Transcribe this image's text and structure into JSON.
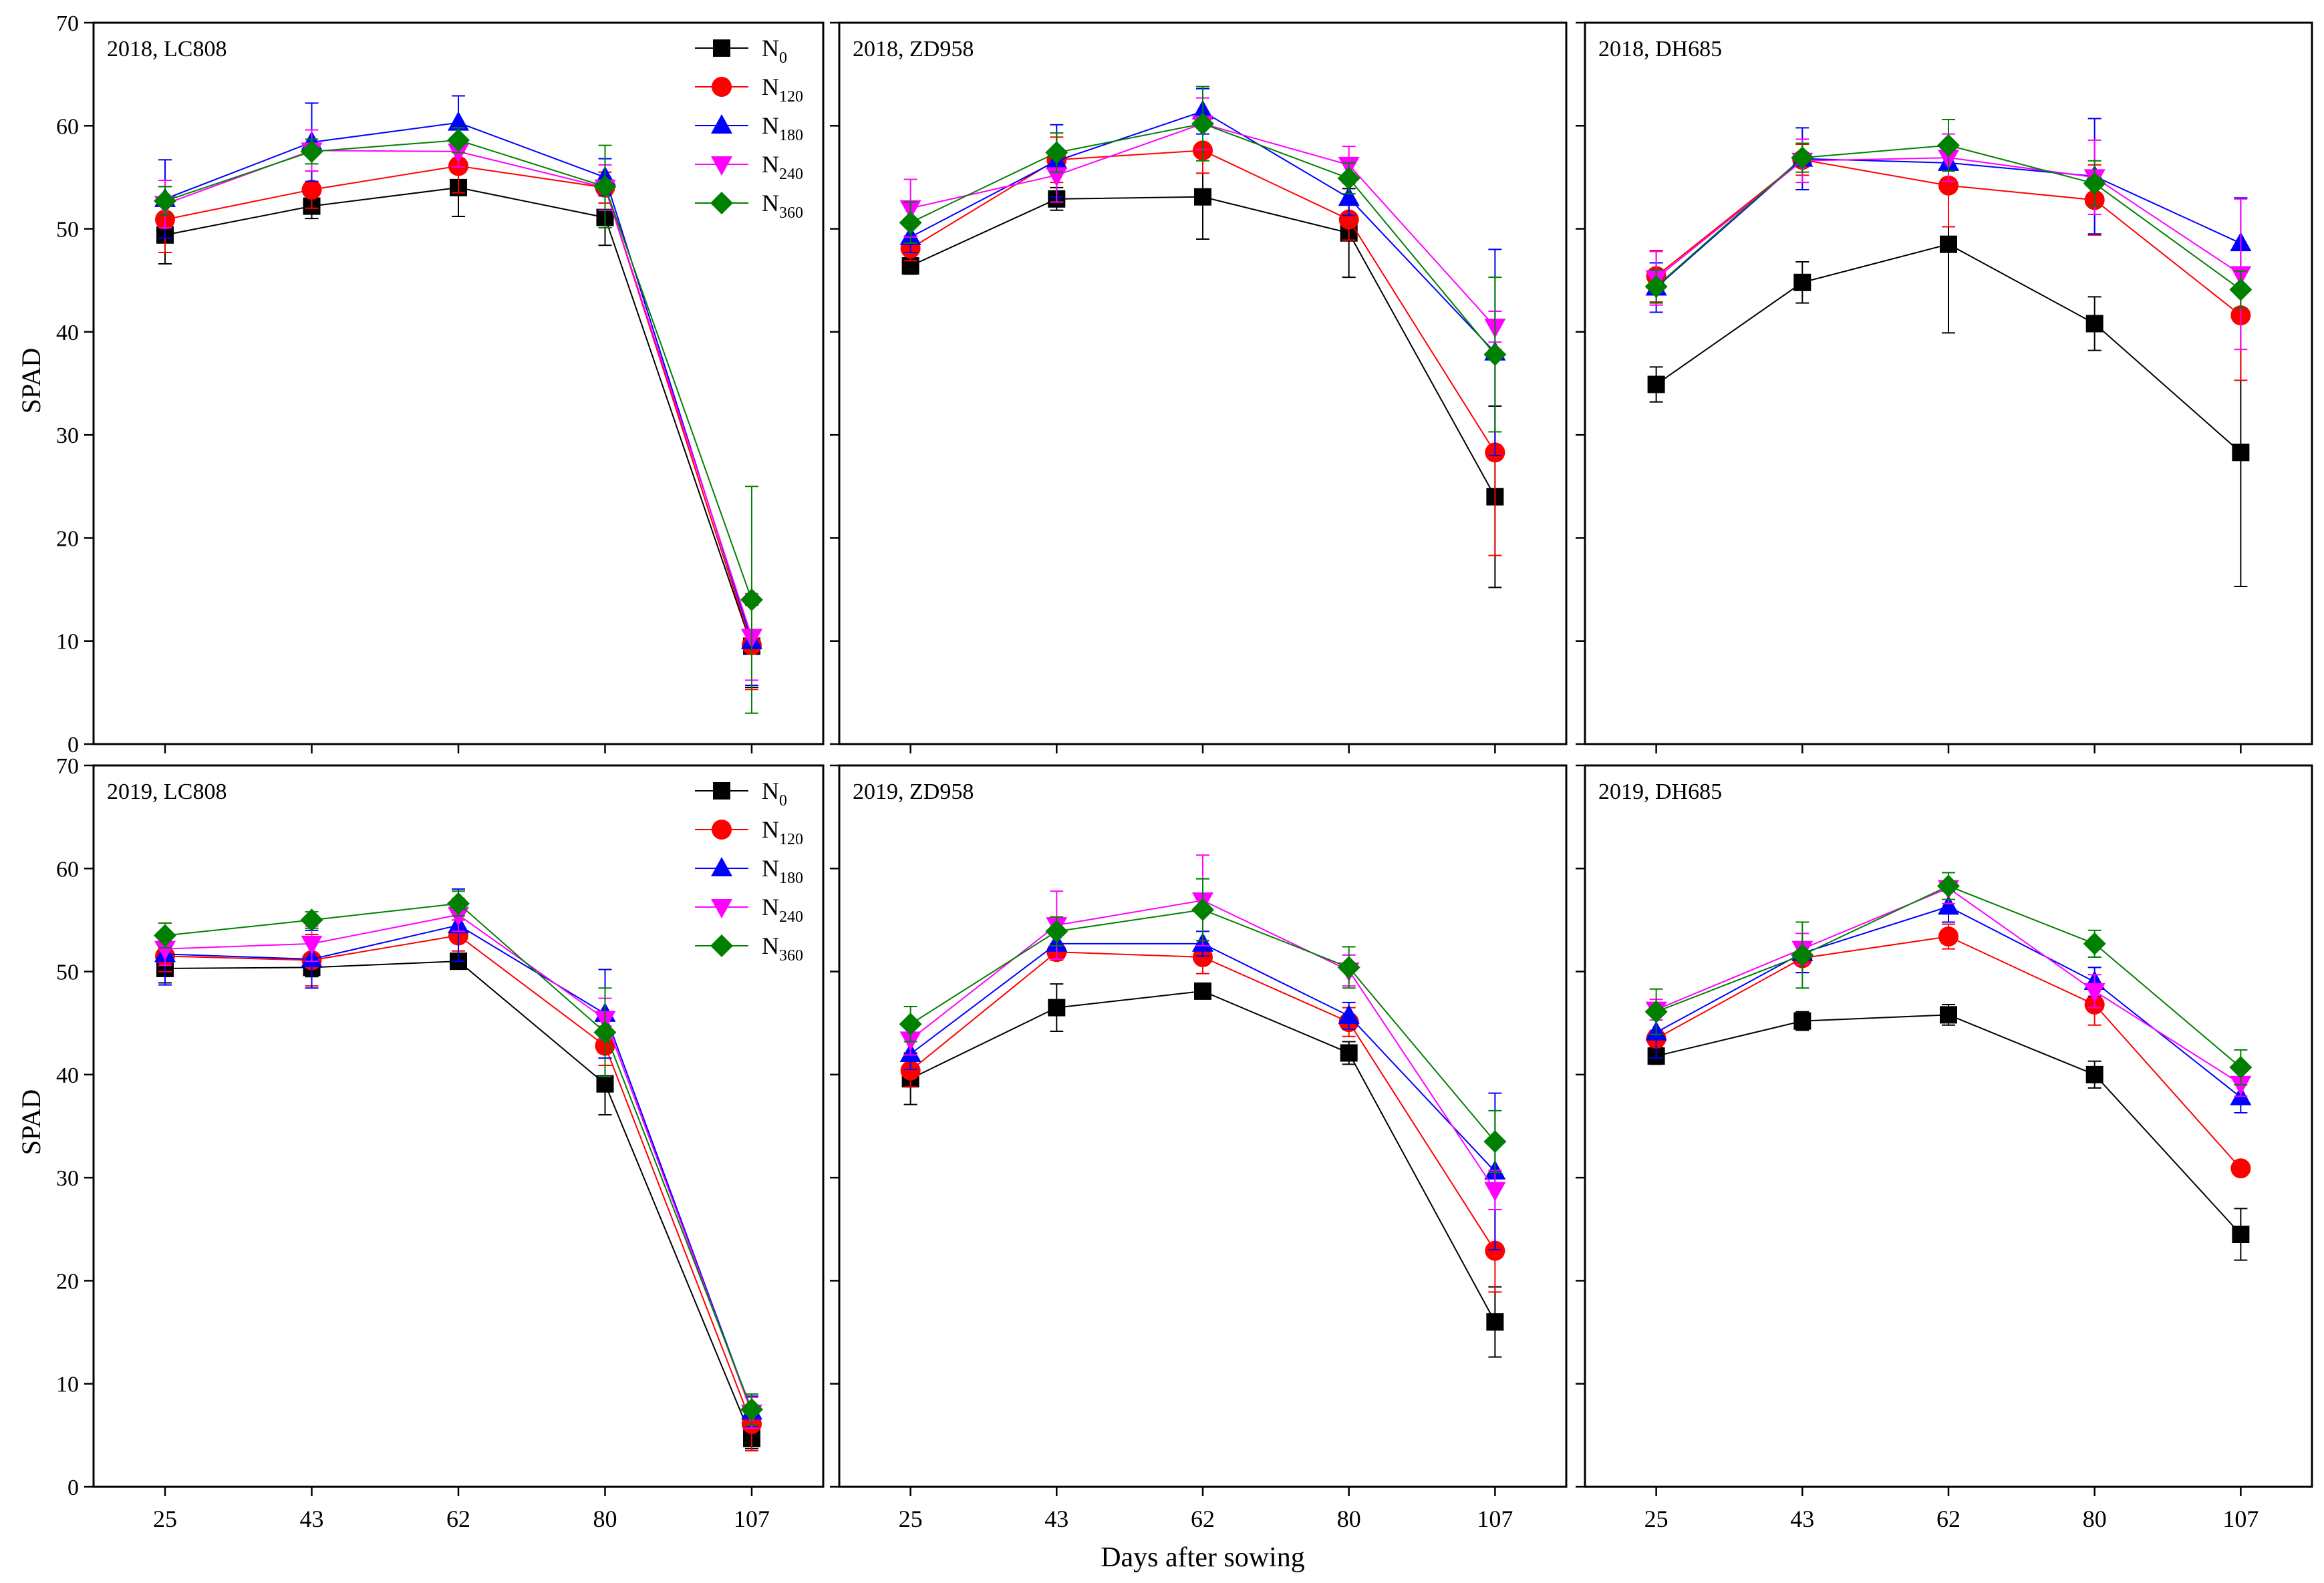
{
  "figure": {
    "x_axis_title": "Days after sowing",
    "y_axis_title": "SPAD"
  },
  "legend": [
    {
      "base": "N",
      "sub": "0",
      "color": "#000000",
      "marker": "square"
    },
    {
      "base": "N",
      "sub": "120",
      "color": "#ff0000",
      "marker": "circle"
    },
    {
      "base": "N",
      "sub": "180",
      "color": "#0000ff",
      "marker": "triangle-up"
    },
    {
      "base": "N",
      "sub": "240",
      "color": "#ff00ff",
      "marker": "triangle-down"
    },
    {
      "base": "N",
      "sub": "360",
      "color": "#008000",
      "marker": "diamond"
    }
  ],
  "chart_data": [
    {
      "type": "line",
      "title": "2018, LC808",
      "xlabel": "Days after sowing",
      "ylabel": "SPAD",
      "categories": [
        "25",
        "43",
        "62",
        "80",
        "107"
      ],
      "ylim": [
        0,
        70
      ],
      "yticks": [
        "0",
        "10",
        "20",
        "30",
        "40",
        "50",
        "60",
        "70"
      ],
      "series": [
        {
          "name": "N0",
          "values": [
            49.4,
            52.2,
            54.0,
            51.1,
            9.5
          ],
          "errors": [
            2.8,
            1.2,
            2.8,
            2.7,
            4.0
          ]
        },
        {
          "name": "N120",
          "values": [
            50.9,
            53.8,
            56.1,
            54.0,
            9.6
          ],
          "errors": [
            3.2,
            1.8,
            2.6,
            1.5,
            4.3
          ]
        },
        {
          "name": "N180",
          "values": [
            52.9,
            58.4,
            60.3,
            55.0,
            10.0
          ],
          "errors": [
            3.8,
            3.8,
            2.6,
            1.8,
            4.3
          ]
        },
        {
          "name": "N240",
          "values": [
            52.4,
            57.6,
            57.5,
            54.0,
            10.4
          ],
          "errors": [
            2.3,
            2.0,
            1.5,
            2.2,
            4.2
          ]
        },
        {
          "name": "N360",
          "values": [
            52.7,
            57.5,
            58.6,
            54.1,
            14.0
          ],
          "errors": [
            1.4,
            1.2,
            1.2,
            4.0,
            11.0
          ]
        }
      ]
    },
    {
      "type": "line",
      "title": "2018, ZD958",
      "xlabel": "Days after sowing",
      "ylabel": "SPAD",
      "categories": [
        "25",
        "43",
        "62",
        "80",
        "107"
      ],
      "ylim": [
        0,
        70
      ],
      "yticks": [
        "0",
        "10",
        "20",
        "30",
        "40",
        "50",
        "60",
        "70"
      ],
      "series": [
        {
          "name": "N0",
          "values": [
            46.4,
            52.9,
            53.1,
            49.6,
            24.0
          ],
          "errors": [
            0.8,
            1.1,
            4.1,
            4.3,
            8.8
          ]
        },
        {
          "name": "N120",
          "values": [
            48.1,
            56.7,
            57.6,
            50.9,
            28.3
          ],
          "errors": [
            1.2,
            2.2,
            2.2,
            2.0,
            10.0
          ]
        },
        {
          "name": "N180",
          "values": [
            49.2,
            56.6,
            61.4,
            53.0,
            38.0
          ],
          "errors": [
            1.5,
            3.5,
            2.2,
            1.7,
            10.0
          ]
        },
        {
          "name": "N240",
          "values": [
            52.0,
            55.2,
            60.2,
            56.2,
            40.5
          ],
          "errors": [
            2.8,
            2.6,
            2.5,
            1.8,
            1.5
          ]
        },
        {
          "name": "N360",
          "values": [
            50.6,
            57.4,
            60.2,
            54.9,
            37.8
          ],
          "errors": [
            2.0,
            1.9,
            3.6,
            1.5,
            7.5
          ]
        }
      ]
    },
    {
      "type": "line",
      "title": "2018, DH685",
      "xlabel": "Days after sowing",
      "ylabel": "SPAD",
      "categories": [
        "25",
        "43",
        "62",
        "80",
        "107"
      ],
      "ylim": [
        0,
        70
      ],
      "yticks": [
        "0",
        "10",
        "20",
        "30",
        "40",
        "50",
        "60",
        "70"
      ],
      "series": [
        {
          "name": "N0",
          "values": [
            34.9,
            44.8,
            48.5,
            40.8,
            28.3
          ],
          "errors": [
            1.7,
            2.0,
            8.6,
            2.6,
            13.0
          ]
        },
        {
          "name": "N120",
          "values": [
            45.4,
            56.7,
            54.2,
            52.8,
            41.6
          ],
          "errors": [
            2.5,
            1.5,
            4.0,
            3.4,
            6.3
          ]
        },
        {
          "name": "N180",
          "values": [
            44.3,
            56.8,
            56.4,
            55.1,
            48.6
          ],
          "errors": [
            2.4,
            3.0,
            1.8,
            5.6,
            4.4
          ]
        },
        {
          "name": "N240",
          "values": [
            45.2,
            56.6,
            56.9,
            55.0,
            45.6
          ],
          "errors": [
            2.6,
            2.1,
            2.3,
            3.6,
            7.3
          ]
        },
        {
          "name": "N360",
          "values": [
            44.4,
            56.9,
            58.1,
            54.4,
            44.1
          ],
          "errors": [
            1.6,
            1.4,
            2.5,
            2.2,
            1.8
          ]
        }
      ]
    },
    {
      "type": "line",
      "title": "2019, LC808",
      "xlabel": "Days after sowing",
      "ylabel": "SPAD",
      "categories": [
        "25",
        "43",
        "62",
        "80",
        "107"
      ],
      "ylim": [
        0,
        70
      ],
      "yticks": [
        "0",
        "10",
        "20",
        "30",
        "40",
        "50",
        "60",
        "70"
      ],
      "series": [
        {
          "name": "N0",
          "values": [
            50.3,
            50.4,
            51.0,
            39.1,
            4.7
          ],
          "errors": [
            1.4,
            0.9,
            0.5,
            3.0,
            1.0
          ]
        },
        {
          "name": "N120",
          "values": [
            51.5,
            51.1,
            53.5,
            42.8,
            6.1
          ],
          "errors": [
            1.5,
            2.5,
            1.5,
            1.9,
            2.6
          ]
        },
        {
          "name": "N180",
          "values": [
            51.7,
            51.2,
            54.5,
            45.9,
            7.3
          ],
          "errors": [
            3.0,
            2.8,
            3.5,
            4.3,
            1.5
          ]
        },
        {
          "name": "N240",
          "values": [
            52.2,
            52.7,
            55.5,
            45.4,
            7.2
          ],
          "errors": [
            1.6,
            1.7,
            1.6,
            2.0,
            1.5
          ]
        },
        {
          "name": "N360",
          "values": [
            53.5,
            55.0,
            56.6,
            44.1,
            7.5
          ],
          "errors": [
            1.2,
            0.8,
            1.2,
            4.3,
            1.5
          ]
        }
      ]
    },
    {
      "type": "line",
      "title": "2019, ZD958",
      "xlabel": "Days after sowing",
      "ylabel": "SPAD",
      "categories": [
        "25",
        "43",
        "62",
        "80",
        "107"
      ],
      "ylim": [
        0,
        70
      ],
      "yticks": [
        "0",
        "10",
        "20",
        "30",
        "40",
        "50",
        "60",
        "70"
      ],
      "series": [
        {
          "name": "N0",
          "values": [
            39.6,
            46.5,
            48.1,
            42.1,
            16.0
          ],
          "errors": [
            2.5,
            2.3,
            0.7,
            1.1,
            3.4
          ]
        },
        {
          "name": "N120",
          "values": [
            40.4,
            51.9,
            51.4,
            45.1,
            22.9
          ],
          "errors": [
            1.6,
            0.8,
            1.6,
            1.4,
            4.0
          ]
        },
        {
          "name": "N180",
          "values": [
            42.0,
            52.7,
            52.7,
            45.7,
            30.6
          ],
          "errors": [
            1.5,
            1.5,
            1.2,
            1.3,
            7.6
          ]
        },
        {
          "name": "N240",
          "values": [
            43.4,
            54.5,
            56.9,
            50.1,
            28.8
          ],
          "errors": [
            1.5,
            3.3,
            4.4,
            1.5,
            1.9
          ]
        },
        {
          "name": "N360",
          "values": [
            44.9,
            53.9,
            56.0,
            50.4,
            33.5
          ],
          "errors": [
            1.7,
            1.4,
            3.0,
            2.0,
            3.0
          ]
        }
      ]
    },
    {
      "type": "line",
      "title": "2019, DH685",
      "xlabel": "Days after sowing",
      "ylabel": "SPAD",
      "categories": [
        "25",
        "43",
        "62",
        "80",
        "107"
      ],
      "ylim": [
        0,
        70
      ],
      "yticks": [
        "0",
        "10",
        "20",
        "30",
        "40",
        "50",
        "60",
        "70"
      ],
      "series": [
        {
          "name": "N0",
          "values": [
            41.8,
            45.2,
            45.8,
            40.0,
            24.5
          ],
          "errors": [
            0.8,
            0.9,
            1.0,
            1.3,
            2.5
          ]
        },
        {
          "name": "N120",
          "values": [
            43.5,
            51.3,
            53.4,
            46.8,
            30.9
          ],
          "errors": [
            0.8,
            1.4,
            1.2,
            2.0,
            0.6
          ]
        },
        {
          "name": "N180",
          "values": [
            44.1,
            51.8,
            56.3,
            49.0,
            37.8
          ],
          "errors": [
            2.5,
            1.9,
            1.5,
            1.4,
            1.5
          ]
        },
        {
          "name": "N240",
          "values": [
            46.3,
            52.2,
            58.1,
            48.1,
            39.1
          ],
          "errors": [
            1.0,
            1.5,
            1.5,
            1.6,
            1.2
          ]
        },
        {
          "name": "N360",
          "values": [
            46.1,
            51.6,
            58.3,
            52.7,
            40.7
          ],
          "errors": [
            2.2,
            3.2,
            1.3,
            1.3,
            1.7
          ]
        }
      ]
    }
  ]
}
